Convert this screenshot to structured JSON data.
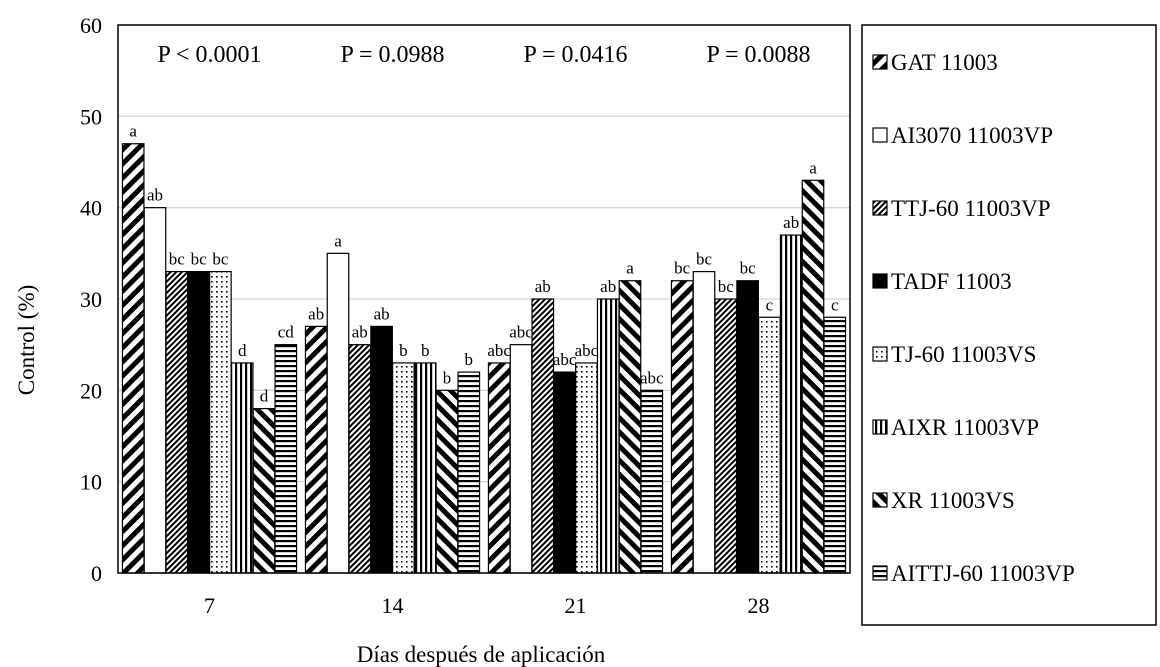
{
  "chart_data": {
    "type": "bar",
    "title": "",
    "xlabel": "Días después de aplicación",
    "ylabel": "Control (%)",
    "ylim": [
      0,
      60
    ],
    "yticks": [
      0,
      10,
      20,
      30,
      40,
      50,
      60
    ],
    "grid": "horizontal",
    "legend_position": "right",
    "categories": [
      "7",
      "14",
      "21",
      "28"
    ],
    "p_values": [
      "P < 0.0001",
      "P = 0.0988",
      "P = 0.0416",
      "P = 0.0088"
    ],
    "series": [
      {
        "name": "GAT 11003",
        "pattern": "diag-thick",
        "values": [
          47,
          27,
          23,
          32
        ],
        "letters": [
          "a",
          "ab",
          "abc",
          "bc"
        ]
      },
      {
        "name": "AI3070 11003VP",
        "pattern": "white",
        "values": [
          40,
          35,
          25,
          33
        ],
        "letters": [
          "ab",
          "a",
          "abc",
          "bc"
        ]
      },
      {
        "name": "TTJ-60 11003VP",
        "pattern": "diag-fine",
        "values": [
          33,
          25,
          30,
          30
        ],
        "letters": [
          "bc",
          "ab",
          "ab",
          "bc"
        ]
      },
      {
        "name": "TADF 11003",
        "pattern": "solid",
        "values": [
          33,
          27,
          22,
          32
        ],
        "letters": [
          "bc",
          "ab",
          "abc",
          "bc"
        ]
      },
      {
        "name": "TJ-60 11003VS",
        "pattern": "dots",
        "values": [
          33,
          23,
          23,
          28
        ],
        "letters": [
          "bc",
          "b",
          "abc",
          "c"
        ]
      },
      {
        "name": "AIXR 11003VP",
        "pattern": "vertical",
        "values": [
          23,
          23,
          30,
          37
        ],
        "letters": [
          "d",
          "b",
          "ab",
          "ab"
        ]
      },
      {
        "name": "XR 11003VS",
        "pattern": "diag-back",
        "values": [
          18,
          20,
          32,
          43
        ],
        "letters": [
          "d",
          "b",
          "a",
          "a"
        ]
      },
      {
        "name": "AITTJ-60 11003VP",
        "pattern": "horizontal",
        "values": [
          25,
          22,
          20,
          28
        ],
        "letters": [
          "cd",
          "b",
          "abc",
          "c"
        ]
      }
    ]
  }
}
